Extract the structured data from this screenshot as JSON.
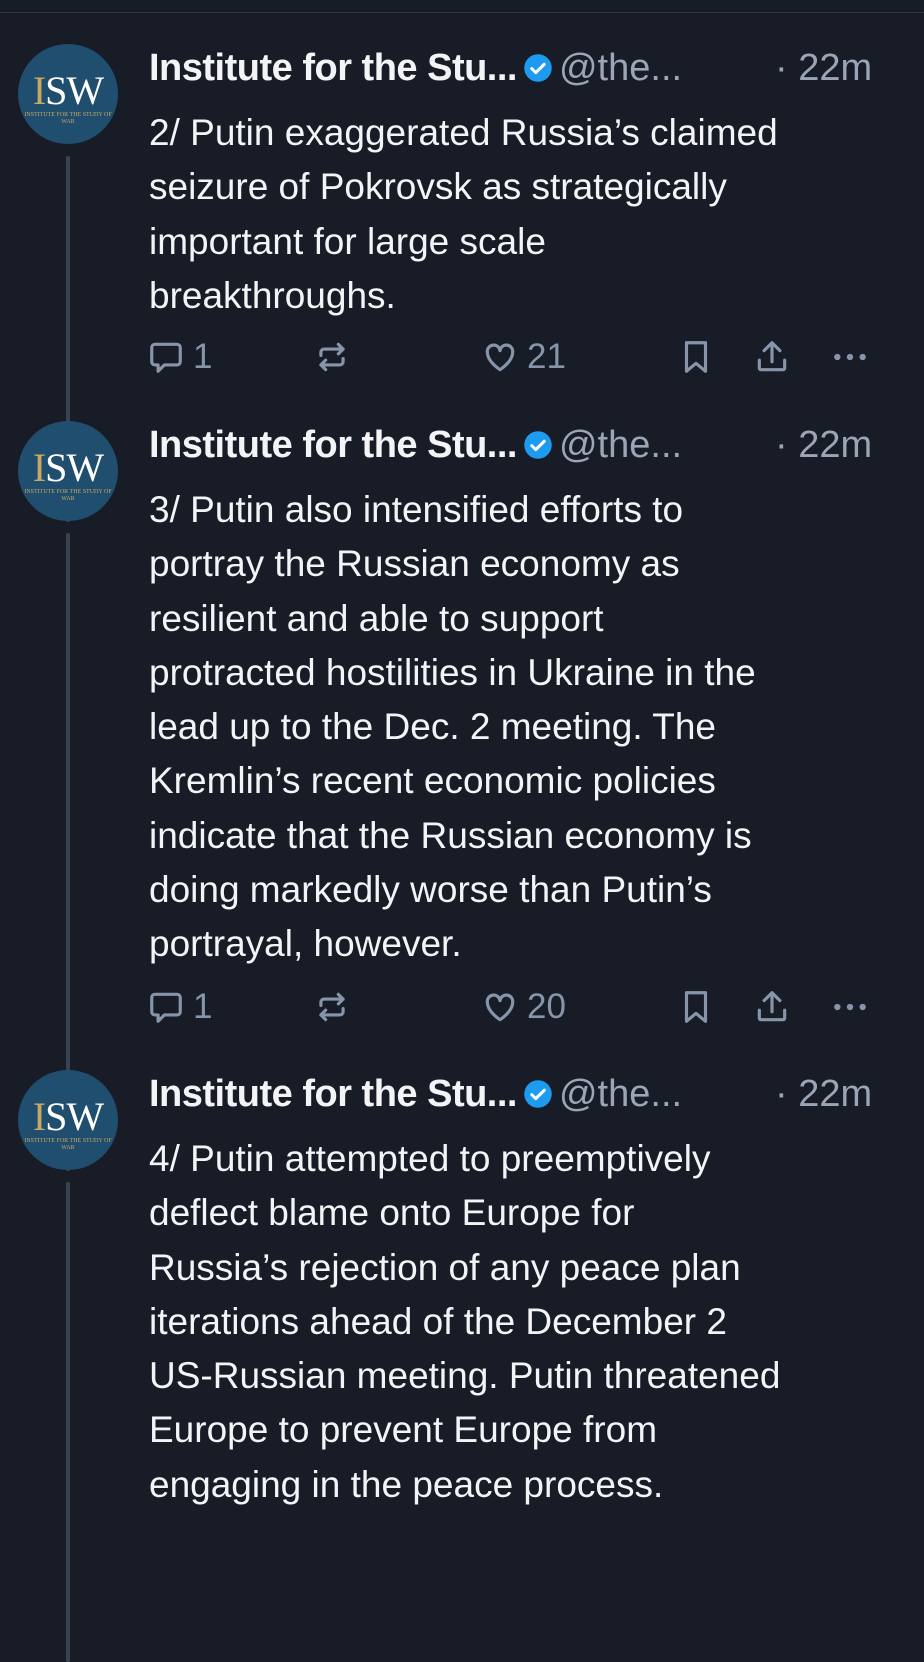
{
  "posts": [
    {
      "author": "Institute for the Stu...",
      "handle": "@the...",
      "time": "· 22m",
      "avatar_text": "ISW",
      "avatar_sub": "INSTITUTE FOR THE STUDY OF WAR",
      "text": "2/ Putin exaggerated Russia’s claimed\nseizure of Pokrovsk as strategically\nimportant for large scale\nbreakthroughs.",
      "replies": "1",
      "reposts": "",
      "likes": "21"
    },
    {
      "author": "Institute for the Stu...",
      "handle": "@the...",
      "time": "· 22m",
      "avatar_text": "ISW",
      "avatar_sub": "INSTITUTE FOR THE STUDY OF WAR",
      "text": "3/ Putin also intensified efforts to\nportray the Russian economy as\nresilient and able to support\nprotracted hostilities in Ukraine in the\nlead up to the Dec. 2 meeting. The\nKremlin’s recent economic policies\nindicate that the Russian economy is\ndoing markedly worse than Putin’s\nportrayal, however.",
      "replies": "1",
      "reposts": "",
      "likes": "20"
    },
    {
      "author": "Institute for the Stu...",
      "handle": "@the...",
      "time": "· 22m",
      "avatar_text": "ISW",
      "avatar_sub": "INSTITUTE FOR THE STUDY OF WAR",
      "text": "4/ Putin attempted to preemptively\ndeflect blame onto Europe for\nRussia’s rejection of any peace plan\niterations ahead of the December 2\nUS-Russian meeting. Putin threatened\nEurope to prevent Europe from\nengaging in the peace process."
    }
  ],
  "colors": {
    "background": "#171c26",
    "verified": "#1d9bf0",
    "muted": "#8795ab"
  }
}
